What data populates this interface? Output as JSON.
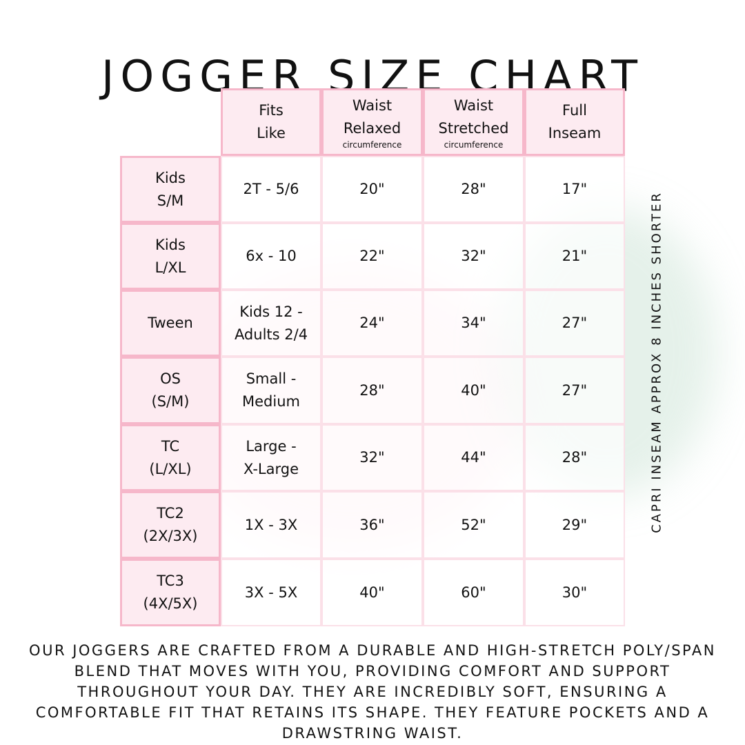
{
  "title": "JOGGER SIZE CHART",
  "headers": [
    {
      "line1": "Fits",
      "line2": "Like",
      "sub": ""
    },
    {
      "line1": "Waist",
      "line2": "Relaxed",
      "sub": "circumference"
    },
    {
      "line1": "Waist",
      "line2": "Stretched",
      "sub": "circumference"
    },
    {
      "line1": "Full",
      "line2": "Inseam",
      "sub": ""
    }
  ],
  "rows": [
    {
      "size1": "Kids",
      "size2": "S/M",
      "fits1": "2T - 5/6",
      "fits2": "",
      "relaxed": "20\"",
      "stretched": "28\"",
      "inseam": "17\""
    },
    {
      "size1": "Kids",
      "size2": "L/XL",
      "fits1": "6x - 10",
      "fits2": "",
      "relaxed": "22\"",
      "stretched": "32\"",
      "inseam": "21\""
    },
    {
      "size1": "Tween",
      "size2": "",
      "fits1": "Kids 12 -",
      "fits2": "Adults 2/4",
      "relaxed": "24\"",
      "stretched": "34\"",
      "inseam": "27\""
    },
    {
      "size1": "OS",
      "size2": "(S/M)",
      "fits1": "Small -",
      "fits2": "Medium",
      "relaxed": "28\"",
      "stretched": "40\"",
      "inseam": "27\""
    },
    {
      "size1": "TC",
      "size2": "(L/XL)",
      "fits1": "Large -",
      "fits2": "X-Large",
      "relaxed": "32\"",
      "stretched": "44\"",
      "inseam": "28\""
    },
    {
      "size1": "TC2",
      "size2": "(2X/3X)",
      "fits1": "1X - 3X",
      "fits2": "",
      "relaxed": "36\"",
      "stretched": "52\"",
      "inseam": "29\""
    },
    {
      "size1": "TC3",
      "size2": "(4X/5X)",
      "fits1": "3X - 5X",
      "fits2": "",
      "relaxed": "40\"",
      "stretched": "60\"",
      "inseam": "30\""
    }
  ],
  "side_note": "CAPRI INSEAM APPROX 8 INCHES SHORTER",
  "footer": "Our joggers are crafted from a durable and high-stretch poly/span blend that moves with you, providing comfort and support throughout your day. They are incredibly soft, ensuring a comfortable fit that retains its shape. They feature pockets and a drawstring waist.",
  "colors": {
    "header_bg": "#fdebf1",
    "border": "#f6b7ca",
    "text": "#111111"
  }
}
